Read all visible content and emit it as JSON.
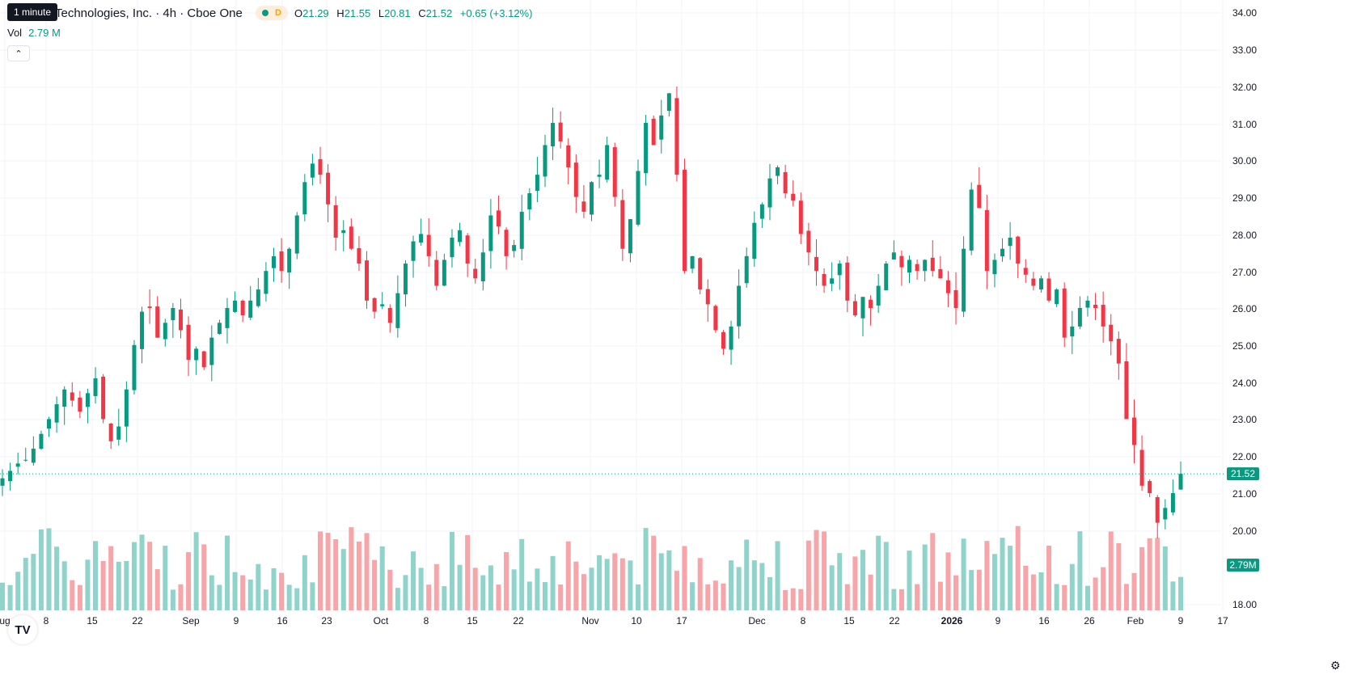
{
  "header": {
    "tooltip": "1 minute",
    "symbol_title": "Technologies, Inc. · 4h · Cboe One",
    "status_letter": "D",
    "ohlc": {
      "o_label": "O",
      "o": "21.29",
      "h_label": "H",
      "h": "21.55",
      "l_label": "L",
      "l": "20.81",
      "c_label": "C",
      "c": "21.52",
      "change": "+0.65 (+3.12%)"
    },
    "vol_label": "Vol",
    "vol_value": "2.79 M"
  },
  "logo_text": "TV",
  "colors": {
    "up": "#089981",
    "down": "#f23645",
    "up_vol": "#8fd3cb",
    "down_vol": "#f7a5a8",
    "grid": "#f0f3fa",
    "axis_text": "#131722"
  },
  "chart_data": {
    "type": "candlestick",
    "price_axis_labels": [
      "34.00",
      "33.00",
      "32.00",
      "31.00",
      "30.00",
      "29.00",
      "28.00",
      "27.00",
      "26.00",
      "25.00",
      "24.00",
      "23.00",
      "22.00",
      "21.00",
      "20.00",
      "18.00"
    ],
    "ylim": [
      18,
      34
    ],
    "time_axis_labels": [
      "ug",
      "8",
      "15",
      "22",
      "Sep",
      "9",
      "16",
      "23",
      "Oct",
      "8",
      "15",
      "22",
      "Nov",
      "10",
      "17",
      "Dec",
      "8",
      "15",
      "22",
      "2026",
      "9",
      "16",
      "26",
      "Feb",
      "9",
      "17"
    ],
    "last_price_label": "21.52",
    "last_price": 21.52,
    "volume_label": "2.79M",
    "closes": [
      21.4,
      21.6,
      21.8,
      21.9,
      22.2,
      22.6,
      23.0,
      23.4,
      23.8,
      23.5,
      23.2,
      23.7,
      24.1,
      23.0,
      22.4,
      22.8,
      23.8,
      25.0,
      25.9,
      26.0,
      25.2,
      25.6,
      26.0,
      25.4,
      24.6,
      24.9,
      24.4,
      25.2,
      25.6,
      26.0,
      26.2,
      25.8,
      26.2,
      26.5,
      27.0,
      27.4,
      27.0,
      27.6,
      28.5,
      29.4,
      29.9,
      29.6,
      28.8,
      27.9,
      28.1,
      27.6,
      27.2,
      26.2,
      25.9,
      26.1,
      25.6,
      26.4,
      27.2,
      27.8,
      28.0,
      27.4,
      26.6,
      27.3,
      27.9,
      28.1,
      27.2,
      26.8,
      27.5,
      28.5,
      28.2,
      27.4,
      27.7,
      28.6,
      29.1,
      29.6,
      30.4,
      31.0,
      30.5,
      29.8,
      29.0,
      28.6,
      29.4,
      29.6,
      30.4,
      29.0,
      27.6,
      28.4,
      29.7,
      31.0,
      30.4,
      31.2,
      31.8,
      29.6,
      27.0,
      27.4,
      26.5,
      26.1,
      25.4,
      24.9,
      25.5,
      26.6,
      27.4,
      28.3,
      28.8,
      29.5,
      29.8,
      29.1,
      28.9,
      28.0,
      27.5,
      27.0,
      26.6,
      26.8,
      27.2,
      26.2,
      25.8,
      26.3,
      26.0,
      26.6,
      27.2,
      27.5,
      27.1,
      27.3,
      27.0,
      27.3,
      27.0,
      26.8,
      26.4,
      26.0,
      27.6,
      29.2,
      28.7,
      27.0,
      27.3,
      27.6,
      27.9,
      27.2,
      26.9,
      26.6,
      26.8,
      26.2,
      26.5,
      25.2,
      25.5,
      26.0,
      26.2,
      26.0,
      25.5,
      25.1,
      24.5,
      23.0,
      22.3,
      21.2,
      21.0,
      20.2,
      20.6,
      21.0,
      21.52
    ]
  }
}
